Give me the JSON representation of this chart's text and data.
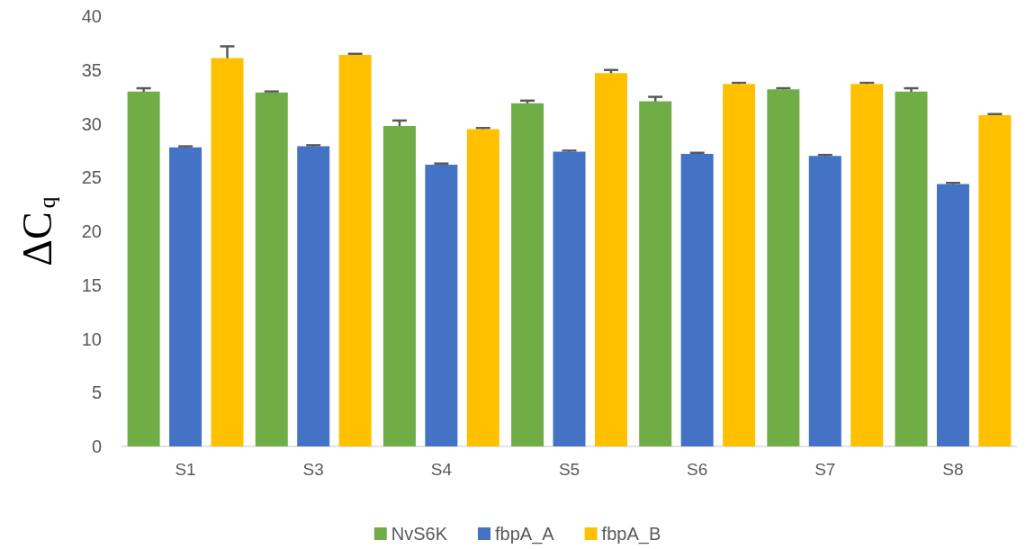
{
  "chart_data": {
    "type": "bar",
    "ylabel": "ΔC$_{q}$",
    "categories": [
      "S1",
      "S3",
      "S4",
      "S5",
      "S6",
      "S7",
      "S8"
    ],
    "series": [
      {
        "name": "NvS6K",
        "color": "#70ad47",
        "values": [
          33.0,
          32.9,
          29.8,
          31.9,
          32.1,
          33.2,
          33.0
        ],
        "errors": [
          0.3,
          0.1,
          0.5,
          0.25,
          0.4,
          0.1,
          0.3
        ]
      },
      {
        "name": "fbpA_A",
        "color": "#4472c4",
        "values": [
          27.8,
          27.9,
          26.2,
          27.4,
          27.2,
          27.0,
          24.4
        ],
        "errors": [
          0.1,
          0.1,
          0.1,
          0.1,
          0.1,
          0.1,
          0.1
        ]
      },
      {
        "name": "fbpA_B",
        "color": "#ffc000",
        "values": [
          36.1,
          36.4,
          29.5,
          34.7,
          33.7,
          33.7,
          30.8
        ],
        "errors": [
          1.1,
          0.1,
          0.1,
          0.3,
          0.1,
          0.1,
          0.1
        ]
      }
    ],
    "ylim": [
      0,
      40
    ],
    "yticks": [
      0,
      5,
      10,
      15,
      20,
      25,
      30,
      35,
      40
    ],
    "grid": false,
    "legend": "bottom"
  }
}
